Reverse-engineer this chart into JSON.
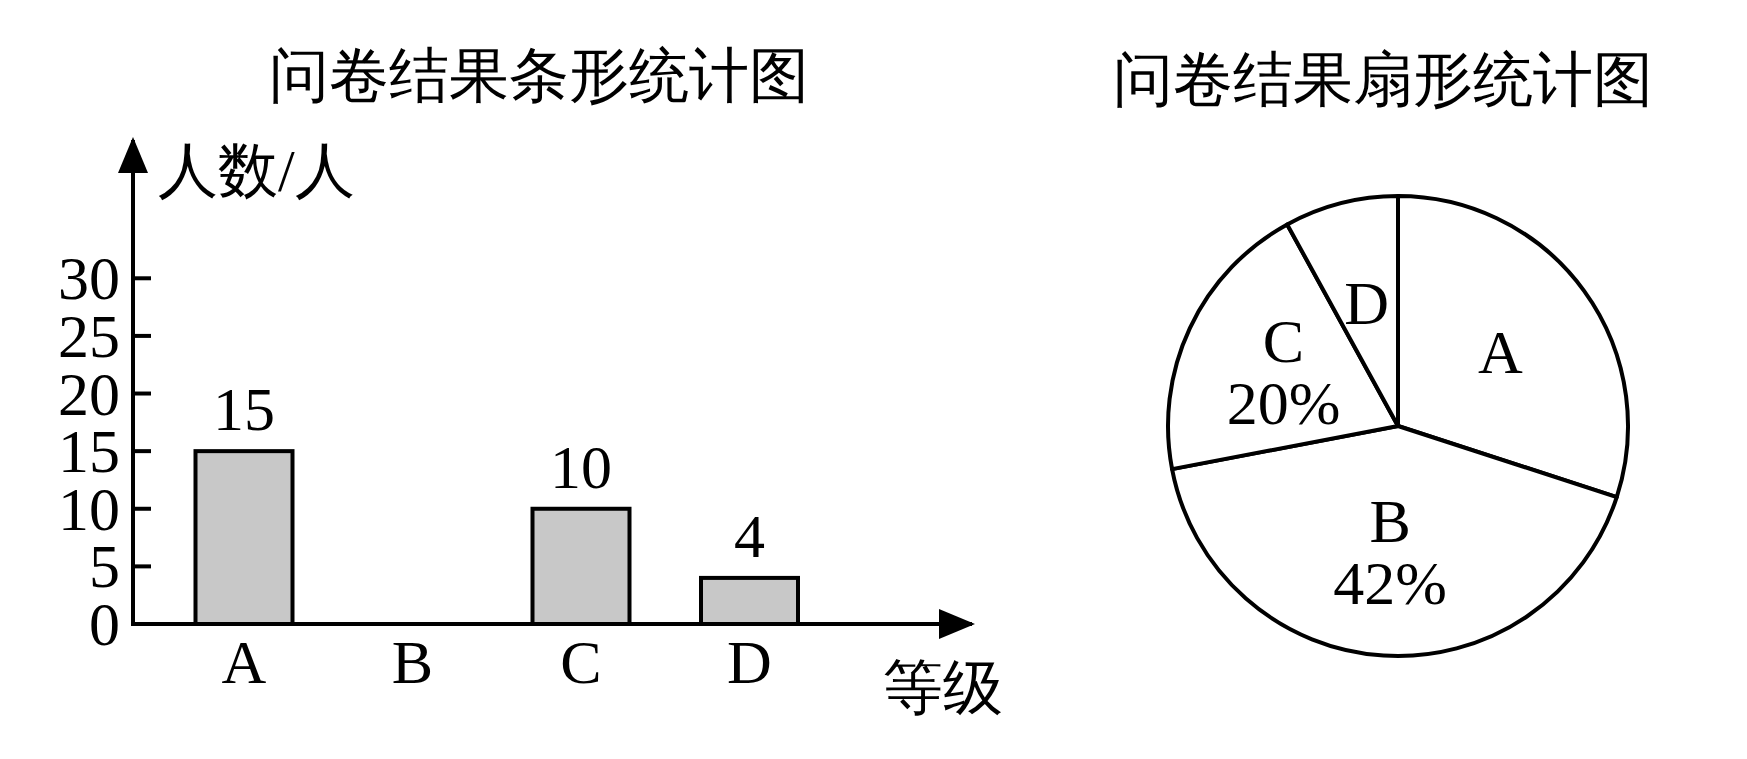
{
  "chart_data": [
    {
      "type": "bar",
      "title": "问卷结果条形统计图",
      "xlabel": "等级",
      "ylabel": "人数/人",
      "categories": [
        "A",
        "B",
        "C",
        "D"
      ],
      "values": [
        15,
        null,
        10,
        4
      ],
      "color": "#c8c8c8",
      "ylim": [
        0,
        42
      ],
      "yticks": [
        0,
        5,
        10,
        15,
        20,
        25,
        30
      ],
      "data_labels": true
    },
    {
      "type": "pie",
      "title": "问卷结果扇形统计图",
      "categories": [
        "A",
        "B",
        "C",
        "D"
      ],
      "values": [
        30,
        42,
        20,
        8
      ],
      "colors": [
        "#ffffff",
        "#ffffff",
        "#ffffff",
        "#ffffff"
      ],
      "value_labels": [
        null,
        "42%",
        "20%",
        null
      ]
    }
  ]
}
